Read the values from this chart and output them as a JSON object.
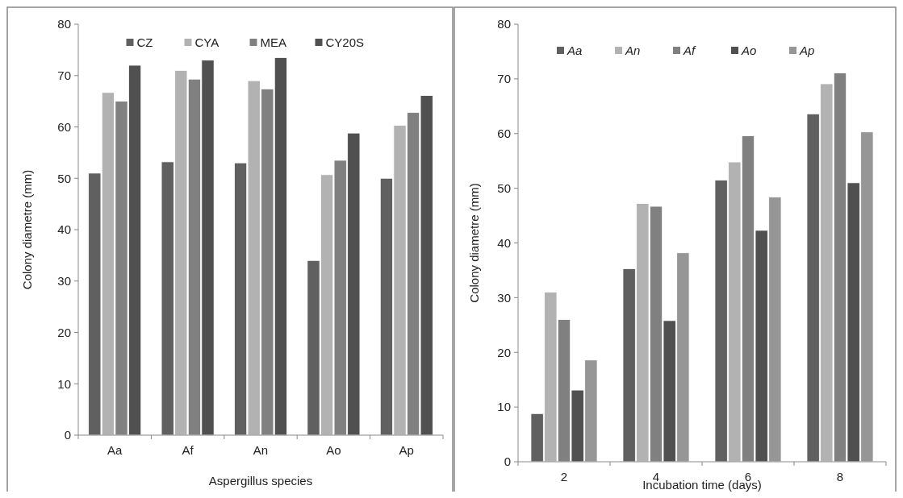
{
  "chart_data": [
    {
      "type": "bar",
      "xlabel": "Aspergillus species",
      "ylabel": "Colony diametre (mm)",
      "categories": [
        "Aa",
        "Af",
        "An",
        "Ao",
        "Ap"
      ],
      "ylim": [
        0,
        80
      ],
      "yticks": [
        0,
        10,
        20,
        30,
        40,
        50,
        60,
        70,
        80
      ],
      "legend": "top",
      "grid": false,
      "series": [
        {
          "name": "CZ",
          "color": "#606060",
          "values": [
            51,
            53.2,
            53,
            34,
            50
          ]
        },
        {
          "name": "CYA",
          "color": "#b2b2b2",
          "values": [
            66.7,
            71,
            69,
            50.7,
            60.3
          ]
        },
        {
          "name": "MEA",
          "color": "#808080",
          "values": [
            65,
            69.3,
            67.4,
            53.5,
            62.8
          ]
        },
        {
          "name": "CY20S",
          "color": "#505050",
          "values": [
            72,
            73,
            73.5,
            58.8,
            66.1
          ]
        }
      ]
    },
    {
      "type": "bar",
      "xlabel": "Incubation time (days)",
      "ylabel": "Colony diametre (mm)",
      "categories": [
        "2",
        "4",
        "6",
        "8"
      ],
      "ylim": [
        0,
        80
      ],
      "yticks": [
        0,
        10,
        20,
        30,
        40,
        50,
        60,
        70,
        80
      ],
      "legend": "top",
      "grid": false,
      "series": [
        {
          "name": "Aa",
          "color": "#606060",
          "values": [
            8.8,
            35.3,
            51.5,
            63.6
          ]
        },
        {
          "name": "An",
          "color": "#b2b2b2",
          "values": [
            31,
            47.2,
            54.8,
            69.1
          ]
        },
        {
          "name": "Af",
          "color": "#808080",
          "values": [
            26,
            46.7,
            59.6,
            71.1
          ]
        },
        {
          "name": "Ao",
          "color": "#505050",
          "values": [
            13.1,
            25.8,
            42.3,
            51
          ]
        },
        {
          "name": "Ap",
          "color": "#969696",
          "values": [
            18.6,
            38.2,
            48.4,
            60.3
          ]
        }
      ]
    }
  ]
}
